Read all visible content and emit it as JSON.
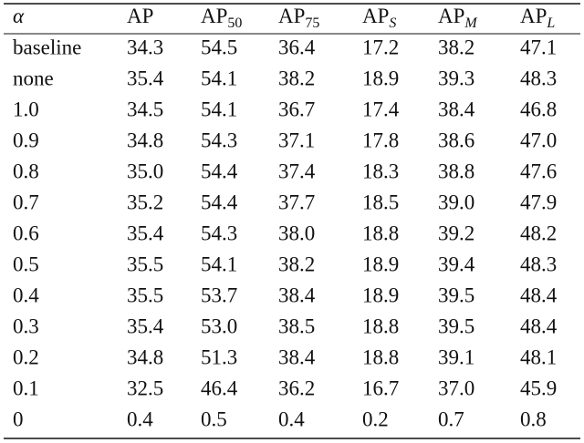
{
  "table": {
    "header": [
      {
        "text": "α"
      },
      {
        "text": "AP"
      },
      {
        "text": "AP",
        "sub": "50"
      },
      {
        "text": "AP",
        "sub": "75"
      },
      {
        "text": "AP",
        "sub": "S"
      },
      {
        "text": "AP",
        "sub": "M"
      },
      {
        "text": "AP",
        "sub": "L"
      }
    ],
    "rows": [
      [
        "baseline",
        "34.3",
        "54.5",
        "36.4",
        "17.2",
        "38.2",
        "47.1"
      ],
      [
        "none",
        "35.4",
        "54.1",
        "38.2",
        "18.9",
        "39.3",
        "48.3"
      ],
      [
        "1.0",
        "34.5",
        "54.1",
        "36.7",
        "17.4",
        "38.4",
        "46.8"
      ],
      [
        "0.9",
        "34.8",
        "54.3",
        "37.1",
        "17.8",
        "38.6",
        "47.0"
      ],
      [
        "0.8",
        "35.0",
        "54.4",
        "37.4",
        "18.3",
        "38.8",
        "47.6"
      ],
      [
        "0.7",
        "35.2",
        "54.4",
        "37.7",
        "18.5",
        "39.0",
        "47.9"
      ],
      [
        "0.6",
        "35.4",
        "54.3",
        "38.0",
        "18.8",
        "39.2",
        "48.2"
      ],
      [
        "0.5",
        "35.5",
        "54.1",
        "38.2",
        "18.9",
        "39.4",
        "48.3"
      ],
      [
        "0.4",
        "35.5",
        "53.7",
        "38.4",
        "18.9",
        "39.5",
        "48.4"
      ],
      [
        "0.3",
        "35.4",
        "53.0",
        "38.5",
        "18.8",
        "39.5",
        "48.4"
      ],
      [
        "0.2",
        "34.8",
        "51.3",
        "38.4",
        "18.8",
        "39.1",
        "48.1"
      ],
      [
        "0.1",
        "32.5",
        "46.4",
        "36.2",
        "16.7",
        "37.0",
        "45.9"
      ],
      [
        "0",
        "0.4",
        "0.5",
        "0.4",
        "0.2",
        "0.7",
        "0.8"
      ]
    ]
  }
}
